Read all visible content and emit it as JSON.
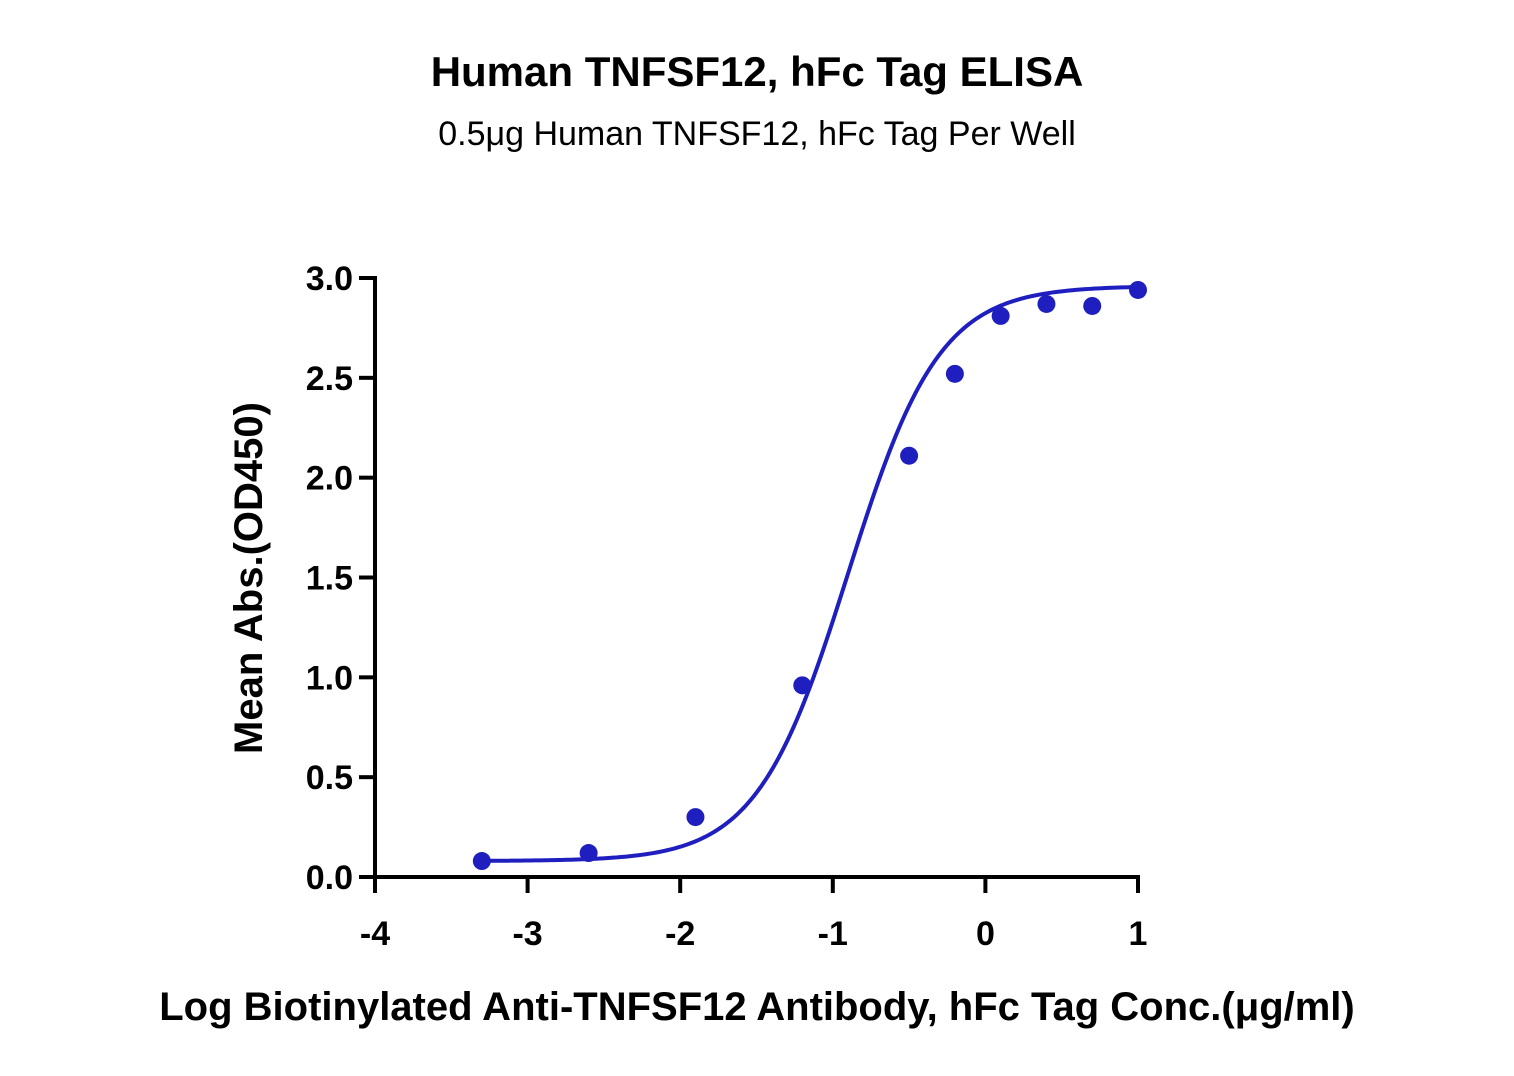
{
  "chart_data": {
    "type": "scatter",
    "title": "Human TNFSF12, hFc Tag ELISA",
    "subtitle": "0.5μg Human TNFSF12, hFc Tag Per Well",
    "xlabel": "Log Biotinylated Anti-TNFSF12 Antibody, hFc Tag Conc.(μg/ml)",
    "ylabel": "Mean Abs.(OD450)",
    "xlim": [
      -4,
      1
    ],
    "ylim": [
      0,
      3.0
    ],
    "x_ticks": [
      "-4",
      "-3",
      "-2",
      "-1",
      "0",
      "1"
    ],
    "y_ticks": [
      "0.0",
      "0.5",
      "1.0",
      "1.5",
      "2.0",
      "2.5",
      "3.0"
    ],
    "grid": false,
    "color": "#1f1fbf",
    "series": [
      {
        "points": [
          {
            "x": -3.3,
            "y": 0.08
          },
          {
            "x": -2.6,
            "y": 0.12
          },
          {
            "x": -1.9,
            "y": 0.3
          },
          {
            "x": -1.2,
            "y": 0.96
          },
          {
            "x": -0.5,
            "y": 2.11
          },
          {
            "x": -0.2,
            "y": 2.52
          },
          {
            "x": 0.1,
            "y": 2.81
          },
          {
            "x": 0.4,
            "y": 2.87
          },
          {
            "x": 0.7,
            "y": 2.86
          },
          {
            "x": 1.0,
            "y": 2.94
          }
        ],
        "fit": {
          "model": "4PL",
          "bottom": 0.08,
          "top": 2.96,
          "log_ec50": -0.9,
          "hill": 1.45
        }
      }
    ]
  }
}
